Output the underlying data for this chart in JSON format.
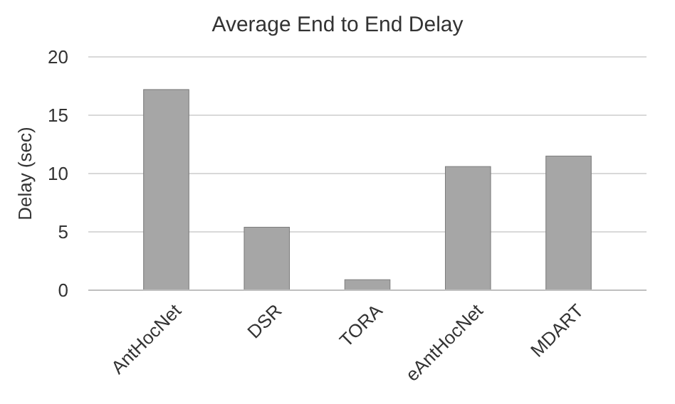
{
  "chart_data": {
    "type": "bar",
    "title": "Average End to End Delay",
    "ylabel": "Delay (sec)",
    "categories": [
      "AntHocNet",
      "DSR",
      "TORA",
      "eAntHocNet",
      "MDART"
    ],
    "values": [
      17.2,
      5.4,
      0.9,
      10.6,
      11.5
    ],
    "color": "#a6a6a6",
    "ylim": [
      0,
      20
    ],
    "yticks": [
      0,
      5,
      10,
      15,
      20
    ],
    "grid": "y"
  }
}
